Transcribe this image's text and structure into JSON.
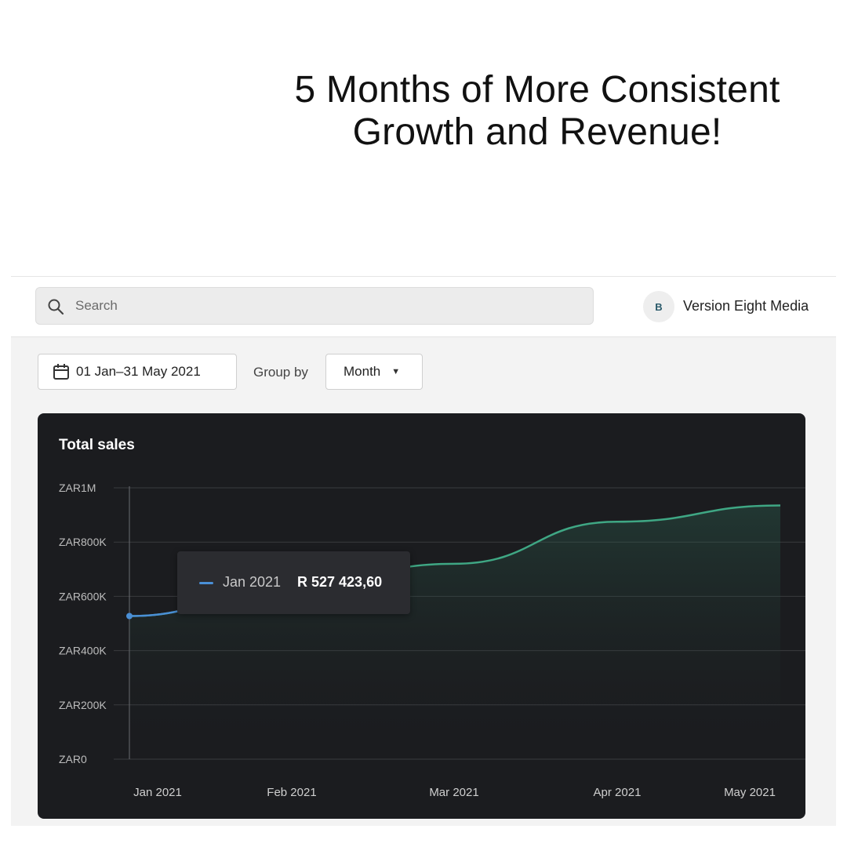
{
  "headline": {
    "line1": "5 Months of More Consistent",
    "line2": "Growth and Revenue!"
  },
  "topbar": {
    "search_placeholder": "Search",
    "store_name": "Version Eight Media",
    "store_logo_letter": "B"
  },
  "filters": {
    "date_range": "01 Jan–31 May 2021",
    "group_by_label": "Group by",
    "group_by_value": "Month"
  },
  "tooltip": {
    "label": "Jan 2021",
    "value": "R 527 423,60"
  },
  "colors": {
    "line_first": "#4a8fd6",
    "line_main": "#3fa784",
    "card_bg": "#1b1c1f"
  },
  "chart_data": {
    "type": "line",
    "title": "Total sales",
    "categories": [
      "Jan 2021",
      "Feb 2021",
      "Mar 2021",
      "Apr 2021",
      "May 2021"
    ],
    "values": [
      527423.6,
      640000,
      720000,
      875000,
      935000
    ],
    "y_ticks": [
      {
        "value": 1000000,
        "label": "ZAR1M"
      },
      {
        "value": 800000,
        "label": "ZAR800K"
      },
      {
        "value": 600000,
        "label": "ZAR600K"
      },
      {
        "value": 400000,
        "label": "ZAR400K"
      },
      {
        "value": 200000,
        "label": "ZAR200K"
      },
      {
        "value": 0,
        "label": "ZAR0"
      }
    ],
    "ylim": [
      0,
      1000000
    ],
    "grid": true
  }
}
